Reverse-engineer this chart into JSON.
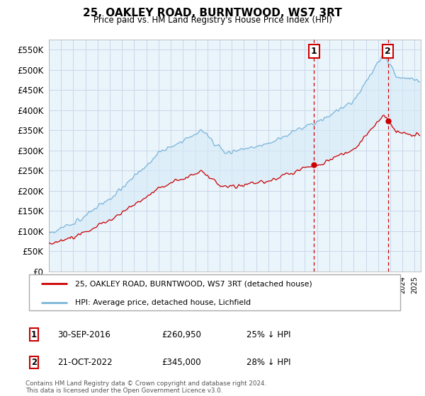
{
  "title": "25, OAKLEY ROAD, BURNTWOOD, WS7 3RT",
  "subtitle": "Price paid vs. HM Land Registry's House Price Index (HPI)",
  "ytick_values": [
    0,
    50000,
    100000,
    150000,
    200000,
    250000,
    300000,
    350000,
    400000,
    450000,
    500000,
    550000
  ],
  "ylim": [
    0,
    575000
  ],
  "xlim_start": 1995.0,
  "xlim_end": 2025.5,
  "hpi_color": "#7ab5d8",
  "hpi_fill_color": "#d6eaf8",
  "price_color": "#cc0000",
  "marker1_date": 2016.75,
  "marker1_price": 260950,
  "marker2_date": 2022.8,
  "marker2_price": 345000,
  "legend_line1": "25, OAKLEY ROAD, BURNTWOOD, WS7 3RT (detached house)",
  "legend_line2": "HPI: Average price, detached house, Lichfield",
  "footer": "Contains HM Land Registry data © Crown copyright and database right 2024.\nThis data is licensed under the Open Government Licence v3.0.",
  "annotation1_date_str": "30-SEP-2016",
  "annotation1_price_str": "£260,950",
  "annotation1_pct_str": "25% ↓ HPI",
  "annotation2_date_str": "21-OCT-2022",
  "annotation2_price_str": "£345,000",
  "annotation2_pct_str": "28% ↓ HPI",
  "background_color": "#ffffff",
  "plot_bg_color": "#eaf4fb",
  "grid_color": "#c8d8e8"
}
